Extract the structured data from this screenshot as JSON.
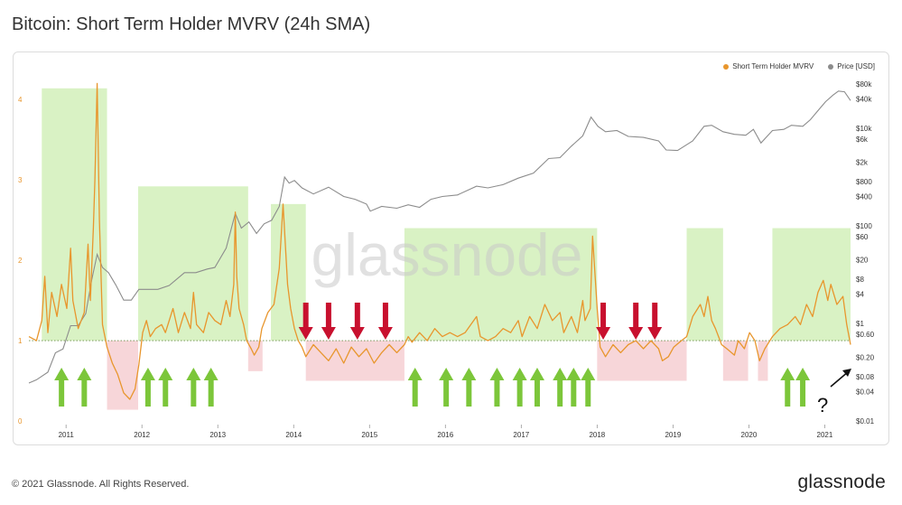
{
  "title": "Bitcoin: Short Term Holder MVRV (24h SMA)",
  "footer": {
    "copyright": "© 2021 Glassnode. All Rights Reserved.",
    "logo": "glassnode"
  },
  "watermark": "glassnode",
  "colors": {
    "mvrv": "#e8962d",
    "price": "#8c8c8c",
    "green_zone": "#d9f2c4",
    "red_zone": "#f7d6d9",
    "up_arrow": "#7cc63a",
    "down_arrow": "#c8102e",
    "baseline": "#6b8f4a"
  },
  "chart_data": {
    "type": "line",
    "title": "Bitcoin: Short Term Holder MVRV (24h SMA)",
    "legend": [
      {
        "name": "Short Term Holder MVRV",
        "color": "#e8962d"
      },
      {
        "name": "Price [USD]",
        "color": "#8c8c8c"
      }
    ],
    "legend_position": "top-right",
    "x_ticks": [
      "2011",
      "2012",
      "2013",
      "2014",
      "2015",
      "2016",
      "2017",
      "2018",
      "2019",
      "2020",
      "2021"
    ],
    "x_range": [
      2010.55,
      2021.38
    ],
    "y_left": {
      "ticks": [
        "0",
        "1",
        "2",
        "3",
        "4"
      ],
      "range": [
        0,
        4.25
      ]
    },
    "y_right": {
      "scale": "log",
      "range": [
        0.01,
        100000
      ],
      "ticks": [
        "$80k",
        "$40k",
        "$10k",
        "$6k",
        "$2k",
        "$800",
        "$400",
        "$100",
        "$60",
        "$20",
        "$8",
        "$4",
        "$1",
        "$0.60",
        "$0.20",
        "$0.08",
        "$0.04",
        "$0.01"
      ],
      "tick_values": [
        80000,
        40000,
        10000,
        6000,
        2000,
        800,
        400,
        100,
        60,
        20,
        8,
        4,
        1,
        0.6,
        0.2,
        0.08,
        0.04,
        0.01
      ]
    },
    "baseline": 1,
    "mvrv": {
      "name": "Short Term Holder MVRV",
      "points": [
        [
          2010.55,
          1.05
        ],
        [
          2010.65,
          1.0
        ],
        [
          2010.72,
          1.25
        ],
        [
          2010.76,
          1.8
        ],
        [
          2010.8,
          1.1
        ],
        [
          2010.85,
          1.6
        ],
        [
          2010.92,
          1.3
        ],
        [
          2010.98,
          1.7
        ],
        [
          2011.05,
          1.4
        ],
        [
          2011.1,
          2.15
        ],
        [
          2011.13,
          1.5
        ],
        [
          2011.2,
          1.15
        ],
        [
          2011.28,
          1.35
        ],
        [
          2011.33,
          2.2
        ],
        [
          2011.36,
          1.5
        ],
        [
          2011.4,
          2.4
        ],
        [
          2011.42,
          3.0
        ],
        [
          2011.45,
          4.2
        ],
        [
          2011.48,
          2.5
        ],
        [
          2011.52,
          1.2
        ],
        [
          2011.58,
          0.92
        ],
        [
          2011.65,
          0.72
        ],
        [
          2011.72,
          0.58
        ],
        [
          2011.8,
          0.35
        ],
        [
          2011.88,
          0.27
        ],
        [
          2011.95,
          0.4
        ],
        [
          2012.0,
          0.7
        ],
        [
          2012.05,
          1.1
        ],
        [
          2012.1,
          1.25
        ],
        [
          2012.15,
          1.05
        ],
        [
          2012.22,
          1.15
        ],
        [
          2012.3,
          1.2
        ],
        [
          2012.35,
          1.1
        ],
        [
          2012.45,
          1.4
        ],
        [
          2012.52,
          1.1
        ],
        [
          2012.6,
          1.35
        ],
        [
          2012.68,
          1.15
        ],
        [
          2012.72,
          1.6
        ],
        [
          2012.76,
          1.2
        ],
        [
          2012.85,
          1.1
        ],
        [
          2012.92,
          1.35
        ],
        [
          2013.0,
          1.25
        ],
        [
          2013.08,
          1.2
        ],
        [
          2013.15,
          1.5
        ],
        [
          2013.2,
          1.3
        ],
        [
          2013.25,
          1.7
        ],
        [
          2013.27,
          2.6
        ],
        [
          2013.29,
          1.8
        ],
        [
          2013.32,
          1.4
        ],
        [
          2013.38,
          1.2
        ],
        [
          2013.42,
          1.0
        ],
        [
          2013.48,
          0.9
        ],
        [
          2013.52,
          0.82
        ],
        [
          2013.58,
          0.92
        ],
        [
          2013.62,
          1.15
        ],
        [
          2013.7,
          1.35
        ],
        [
          2013.78,
          1.45
        ],
        [
          2013.85,
          1.9
        ],
        [
          2013.9,
          2.7
        ],
        [
          2013.93,
          2.2
        ],
        [
          2013.96,
          1.7
        ],
        [
          2014.0,
          1.4
        ],
        [
          2014.05,
          1.15
        ],
        [
          2014.1,
          1.0
        ],
        [
          2014.15,
          0.92
        ],
        [
          2014.2,
          0.8
        ],
        [
          2014.3,
          0.95
        ],
        [
          2014.4,
          0.85
        ],
        [
          2014.5,
          0.75
        ],
        [
          2014.6,
          0.9
        ],
        [
          2014.7,
          0.72
        ],
        [
          2014.8,
          0.92
        ],
        [
          2014.9,
          0.8
        ],
        [
          2015.0,
          0.9
        ],
        [
          2015.1,
          0.72
        ],
        [
          2015.2,
          0.85
        ],
        [
          2015.3,
          0.95
        ],
        [
          2015.4,
          0.85
        ],
        [
          2015.5,
          0.95
        ],
        [
          2015.55,
          1.05
        ],
        [
          2015.6,
          0.98
        ],
        [
          2015.7,
          1.1
        ],
        [
          2015.8,
          1.0
        ],
        [
          2015.9,
          1.15
        ],
        [
          2016.0,
          1.05
        ],
        [
          2016.1,
          1.1
        ],
        [
          2016.2,
          1.05
        ],
        [
          2016.3,
          1.1
        ],
        [
          2016.45,
          1.3
        ],
        [
          2016.5,
          1.05
        ],
        [
          2016.6,
          1.0
        ],
        [
          2016.7,
          1.05
        ],
        [
          2016.8,
          1.15
        ],
        [
          2016.9,
          1.1
        ],
        [
          2017.0,
          1.25
        ],
        [
          2017.05,
          1.05
        ],
        [
          2017.15,
          1.3
        ],
        [
          2017.25,
          1.15
        ],
        [
          2017.35,
          1.45
        ],
        [
          2017.45,
          1.25
        ],
        [
          2017.55,
          1.35
        ],
        [
          2017.6,
          1.1
        ],
        [
          2017.7,
          1.3
        ],
        [
          2017.78,
          1.1
        ],
        [
          2017.85,
          1.5
        ],
        [
          2017.88,
          1.25
        ],
        [
          2017.95,
          1.4
        ],
        [
          2017.98,
          2.3
        ],
        [
          2018.0,
          2.0
        ],
        [
          2018.04,
          1.4
        ],
        [
          2018.08,
          0.92
        ],
        [
          2018.15,
          0.8
        ],
        [
          2018.25,
          0.95
        ],
        [
          2018.35,
          0.85
        ],
        [
          2018.45,
          0.95
        ],
        [
          2018.55,
          1.0
        ],
        [
          2018.65,
          0.9
        ],
        [
          2018.75,
          1.0
        ],
        [
          2018.85,
          0.9
        ],
        [
          2018.9,
          0.75
        ],
        [
          2018.98,
          0.8
        ],
        [
          2019.05,
          0.92
        ],
        [
          2019.15,
          1.0
        ],
        [
          2019.22,
          1.05
        ],
        [
          2019.3,
          1.3
        ],
        [
          2019.4,
          1.45
        ],
        [
          2019.45,
          1.3
        ],
        [
          2019.5,
          1.55
        ],
        [
          2019.55,
          1.25
        ],
        [
          2019.6,
          1.15
        ],
        [
          2019.68,
          0.95
        ],
        [
          2019.75,
          0.9
        ],
        [
          2019.85,
          0.82
        ],
        [
          2019.9,
          1.0
        ],
        [
          2019.98,
          0.9
        ],
        [
          2020.05,
          1.1
        ],
        [
          2020.12,
          1.0
        ],
        [
          2020.18,
          0.75
        ],
        [
          2020.25,
          0.9
        ],
        [
          2020.35,
          1.05
        ],
        [
          2020.45,
          1.15
        ],
        [
          2020.55,
          1.2
        ],
        [
          2020.65,
          1.3
        ],
        [
          2020.72,
          1.2
        ],
        [
          2020.8,
          1.45
        ],
        [
          2020.88,
          1.3
        ],
        [
          2020.95,
          1.6
        ],
        [
          2021.02,
          1.75
        ],
        [
          2021.08,
          1.5
        ],
        [
          2021.12,
          1.7
        ],
        [
          2021.2,
          1.45
        ],
        [
          2021.28,
          1.55
        ],
        [
          2021.33,
          1.2
        ],
        [
          2021.38,
          0.95
        ]
      ]
    },
    "price": {
      "name": "Price [USD]",
      "points": [
        [
          2010.55,
          0.06
        ],
        [
          2010.65,
          0.07
        ],
        [
          2010.8,
          0.1
        ],
        [
          2010.9,
          0.25
        ],
        [
          2011.0,
          0.3
        ],
        [
          2011.1,
          0.9
        ],
        [
          2011.2,
          0.9
        ],
        [
          2011.3,
          1.6
        ],
        [
          2011.38,
          8
        ],
        [
          2011.45,
          26
        ],
        [
          2011.52,
          14
        ],
        [
          2011.6,
          11
        ],
        [
          2011.7,
          6
        ],
        [
          2011.8,
          3
        ],
        [
          2011.9,
          3
        ],
        [
          2012.0,
          5
        ],
        [
          2012.1,
          5
        ],
        [
          2012.25,
          5
        ],
        [
          2012.4,
          6
        ],
        [
          2012.6,
          11
        ],
        [
          2012.75,
          11
        ],
        [
          2012.9,
          13
        ],
        [
          2013.0,
          14
        ],
        [
          2013.15,
          35
        ],
        [
          2013.27,
          180
        ],
        [
          2013.35,
          90
        ],
        [
          2013.45,
          120
        ],
        [
          2013.55,
          70
        ],
        [
          2013.65,
          110
        ],
        [
          2013.75,
          130
        ],
        [
          2013.85,
          250
        ],
        [
          2013.92,
          1000
        ],
        [
          2013.98,
          750
        ],
        [
          2014.05,
          850
        ],
        [
          2014.15,
          600
        ],
        [
          2014.3,
          450
        ],
        [
          2014.5,
          620
        ],
        [
          2014.7,
          400
        ],
        [
          2014.85,
          350
        ],
        [
          2015.0,
          280
        ],
        [
          2015.05,
          200
        ],
        [
          2015.2,
          250
        ],
        [
          2015.4,
          230
        ],
        [
          2015.55,
          270
        ],
        [
          2015.7,
          240
        ],
        [
          2015.85,
          350
        ],
        [
          2016.0,
          400
        ],
        [
          2016.2,
          430
        ],
        [
          2016.45,
          650
        ],
        [
          2016.6,
          600
        ],
        [
          2016.8,
          700
        ],
        [
          2017.0,
          950
        ],
        [
          2017.2,
          1200
        ],
        [
          2017.4,
          2400
        ],
        [
          2017.55,
          2500
        ],
        [
          2017.7,
          4300
        ],
        [
          2017.85,
          7000
        ],
        [
          2017.96,
          17000
        ],
        [
          2018.05,
          11000
        ],
        [
          2018.15,
          8500
        ],
        [
          2018.3,
          9000
        ],
        [
          2018.45,
          6800
        ],
        [
          2018.65,
          6500
        ],
        [
          2018.85,
          5500
        ],
        [
          2018.95,
          3600
        ],
        [
          2019.1,
          3500
        ],
        [
          2019.3,
          5500
        ],
        [
          2019.45,
          11000
        ],
        [
          2019.55,
          11500
        ],
        [
          2019.7,
          8500
        ],
        [
          2019.85,
          7500
        ],
        [
          2020.0,
          7200
        ],
        [
          2020.1,
          9500
        ],
        [
          2020.2,
          5000
        ],
        [
          2020.35,
          9000
        ],
        [
          2020.5,
          9500
        ],
        [
          2020.6,
          11500
        ],
        [
          2020.75,
          11000
        ],
        [
          2020.85,
          15000
        ],
        [
          2020.95,
          23000
        ],
        [
          2021.05,
          35000
        ],
        [
          2021.15,
          48000
        ],
        [
          2021.22,
          58000
        ],
        [
          2021.3,
          56000
        ],
        [
          2021.38,
          37000
        ]
      ]
    },
    "green_zones": [
      [
        2010.72,
        2011.58
      ],
      [
        2011.99,
        2013.44
      ],
      [
        2013.74,
        2014.2
      ],
      [
        2015.5,
        2018.04
      ],
      [
        2019.22,
        2019.7
      ],
      [
        2020.35,
        2021.38
      ]
    ],
    "red_zones": [
      [
        2011.58,
        2011.99
      ],
      [
        2013.44,
        2013.63
      ],
      [
        2014.2,
        2015.5
      ],
      [
        2018.04,
        2019.22
      ],
      [
        2019.7,
        2020.03
      ],
      [
        2020.16,
        2020.29
      ]
    ],
    "annotations": {
      "up_arrows": [
        2010.98,
        2011.28,
        2012.12,
        2012.35,
        2012.72,
        2012.95,
        2015.64,
        2016.05,
        2016.35,
        2016.72,
        2017.02,
        2017.25,
        2017.55,
        2017.73,
        2017.92,
        2020.55,
        2020.75
      ],
      "down_arrows": [
        2014.2,
        2014.5,
        2014.88,
        2015.25,
        2018.12,
        2018.55,
        2018.8
      ],
      "question_mark": "?"
    }
  }
}
